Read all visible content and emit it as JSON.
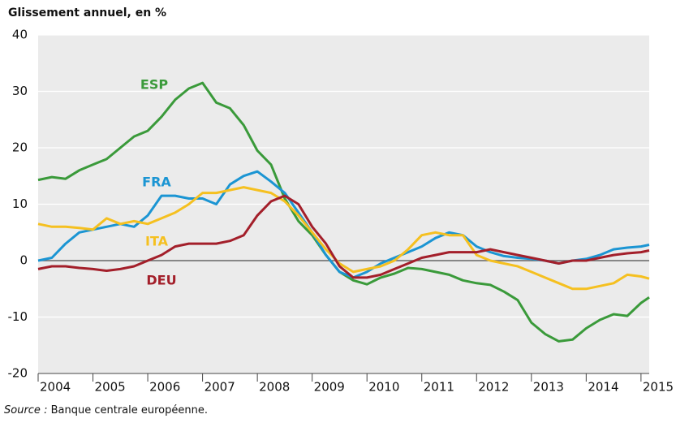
{
  "chart_data": {
    "type": "line",
    "subtitle": "Glissement annuel, en %",
    "source_label": "Source :",
    "source_text": "Banque centrale européenne.",
    "x": [
      2004,
      2004.25,
      2004.5,
      2004.75,
      2005,
      2005.25,
      2005.5,
      2005.75,
      2006,
      2006.25,
      2006.5,
      2006.75,
      2007,
      2007.25,
      2007.5,
      2007.75,
      2008,
      2008.25,
      2008.5,
      2008.75,
      2009,
      2009.25,
      2009.5,
      2009.75,
      2010,
      2010.25,
      2010.5,
      2010.75,
      2011,
      2011.25,
      2011.5,
      2011.75,
      2012,
      2012.25,
      2012.5,
      2012.75,
      2013,
      2013.25,
      2013.5,
      2013.75,
      2014,
      2014.25,
      2014.5,
      2014.75,
      2015,
      2015.15
    ],
    "series": [
      {
        "name": "ESP",
        "color": "#3a9a3a",
        "values": [
          14.3,
          14.8,
          14.5,
          16,
          17,
          18,
          20,
          22,
          23,
          25.5,
          28.5,
          30.5,
          31.5,
          28,
          27,
          24,
          19.5,
          17,
          11,
          7,
          4.5,
          1,
          -2,
          -3.5,
          -4.2,
          -3,
          -2.3,
          -1.3,
          -1.5,
          -2,
          -2.5,
          -3.5,
          -4,
          -4.3,
          -5.5,
          -7,
          -11,
          -13,
          -14.3,
          -14,
          -12,
          -10.5,
          -9.5,
          -9.8,
          -7.5,
          -6.5
        ]
      },
      {
        "name": "FRA",
        "color": "#1b95d3",
        "values": [
          0,
          0.5,
          3,
          5,
          5.5,
          6,
          6.5,
          6,
          8,
          11.5,
          11.5,
          11,
          11,
          10,
          13.5,
          15,
          15.8,
          14,
          12,
          8.5,
          5,
          1,
          -2,
          -3,
          -2,
          -0.5,
          0.5,
          1.5,
          2.5,
          4,
          5,
          4.5,
          2.5,
          1.5,
          0.8,
          0.5,
          0.3,
          0,
          -0.5,
          0,
          0.3,
          1,
          2,
          2.3,
          2.5,
          2.8
        ]
      },
      {
        "name": "ITA",
        "color": "#f5c020",
        "values": [
          6.5,
          6,
          6,
          5.8,
          5.5,
          7.5,
          6.5,
          7,
          6.5,
          7.5,
          8.5,
          10,
          12,
          12,
          12.5,
          13,
          12.5,
          12,
          10.5,
          8,
          5,
          2,
          -0.5,
          -2,
          -1.5,
          -1,
          0,
          2,
          4.5,
          5,
          4.5,
          4.5,
          1,
          0,
          -0.5,
          -1,
          -2,
          -3,
          -4,
          -5,
          -5,
          -4.5,
          -4,
          -2.5,
          -2.8,
          -3.2
        ]
      },
      {
        "name": "DEU",
        "color": "#a31f2a",
        "values": [
          -1.5,
          -1,
          -1,
          -1.3,
          -1.5,
          -1.8,
          -1.5,
          -1,
          0,
          1,
          2.5,
          3,
          3,
          3,
          3.5,
          4.5,
          8,
          10.5,
          11.5,
          10,
          6,
          3,
          -1,
          -3,
          -3,
          -2.5,
          -1.5,
          -0.5,
          0.5,
          1,
          1.5,
          1.5,
          1.5,
          2,
          1.5,
          1,
          0.5,
          0,
          -0.5,
          0,
          0,
          0.5,
          1,
          1.3,
          1.5,
          1.8
        ]
      }
    ],
    "xlim": [
      2004,
      2015.15
    ],
    "xticks": [
      2004,
      2005,
      2006,
      2007,
      2008,
      2009,
      2010,
      2011,
      2012,
      2013,
      2014,
      2015
    ],
    "ylim": [
      -20,
      40
    ],
    "yticks": [
      -20,
      -10,
      0,
      10,
      20,
      30,
      40
    ],
    "grid": true
  }
}
